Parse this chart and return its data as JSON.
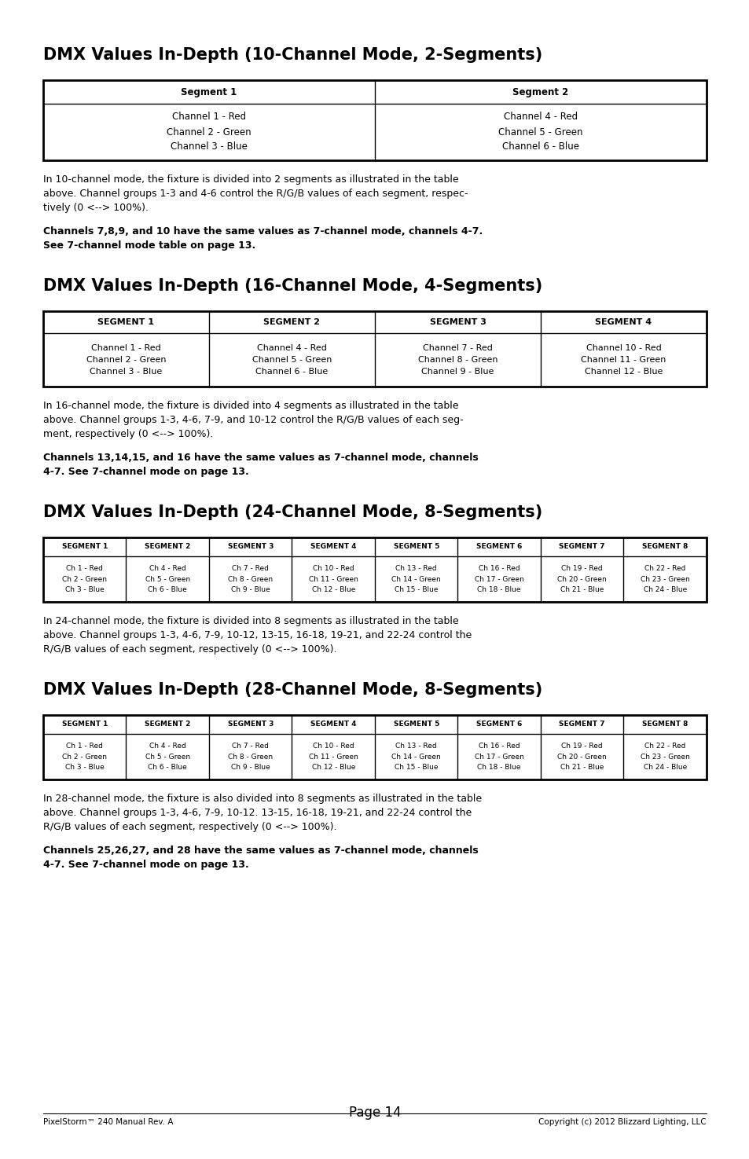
{
  "title1": "DMX Values In-Depth (10-Channel Mode, 2-Segments)",
  "title2": "DMX Values In-Depth (16-Channel Mode, 4-Segments)",
  "title3": "DMX Values In-Depth (24-Channel Mode, 8-Segments)",
  "title4": "DMX Values In-Depth (28-Channel Mode, 8-Segments)",
  "table1_headers": [
    "Segment 1",
    "Segment 2"
  ],
  "table1_rows": [
    [
      "Channel 1 - Red\nChannel 2 - Green\nChannel 3 - Blue",
      "Channel 4 - Red\nChannel 5 - Green\nChannel 6 - Blue"
    ]
  ],
  "table2_headers": [
    "SEGMENT 1",
    "SEGMENT 2",
    "SEGMENT 3",
    "SEGMENT 4"
  ],
  "table2_rows": [
    [
      "Channel 1 - Red\nChannel 2 - Green\nChannel 3 - Blue",
      "Channel 4 - Red\nChannel 5 - Green\nChannel 6 - Blue",
      "Channel 7 - Red\nChannel 8 - Green\nChannel 9 - Blue",
      "Channel 10 - Red\nChannel 11 - Green\nChannel 12 - Blue"
    ]
  ],
  "table3_headers": [
    "SEGMENT 1",
    "SEGMENT 2",
    "SEGMENT 3",
    "SEGMENT 4",
    "SEGMENT 5",
    "SEGMENT 6",
    "SEGMENT 7",
    "SEGMENT 8"
  ],
  "table3_rows": [
    [
      "Ch 1 - Red\nCh 2 - Green\nCh 3 - Blue",
      "Ch 4 - Red\nCh 5 - Green\nCh 6 - Blue",
      "Ch 7 - Red\nCh 8 - Green\nCh 9 - Blue",
      "Ch 10 - Red\nCh 11 - Green\nCh 12 - Blue",
      "Ch 13 - Red\nCh 14 - Green\nCh 15 - Blue",
      "Ch 16 - Red\nCh 17 - Green\nCh 18 - Blue",
      "Ch 19 - Red\nCh 20 - Green\nCh 21 - Blue",
      "Ch 22 - Red\nCh 23 - Green\nCh 24 - Blue"
    ]
  ],
  "table4_headers": [
    "SEGMENT 1",
    "SEGMENT 2",
    "SEGMENT 3",
    "SEGMENT 4",
    "SEGMENT 5",
    "SEGMENT 6",
    "SEGMENT 7",
    "SEGMENT 8"
  ],
  "table4_rows": [
    [
      "Ch 1 - Red\nCh 2 - Green\nCh 3 - Blue",
      "Ch 4 - Red\nCh 5 - Green\nCh 6 - Blue",
      "Ch 7 - Red\nCh 8 - Green\nCh 9 - Blue",
      "Ch 10 - Red\nCh 11 - Green\nCh 12 - Blue",
      "Ch 13 - Red\nCh 14 - Green\nCh 15 - Blue",
      "Ch 16 - Red\nCh 17 - Green\nCh 18 - Blue",
      "Ch 19 - Red\nCh 20 - Green\nCh 21 - Blue",
      "Ch 22 - Red\nCh 23 - Green\nCh 24 - Blue"
    ]
  ],
  "para1_line1": "In 10-channel mode, the fixture is divided into 2 segments as illustrated in the table",
  "para1_line2": "above. Channel groups 1-3 and 4-6 control the R/G/B values of each segment, respec-",
  "para1_line3": "tively (0 <--> 100%).",
  "para1b_line1": "Channels 7,8,9, and 10 have the same values as 7-channel mode, channels 4-7.",
  "para1b_line2": "See 7-channel mode table on page 13.",
  "para2_line1": "In 16-channel mode, the fixture is divided into 4 segments as illustrated in the table",
  "para2_line2": "above. Channel groups 1-3, 4-6, 7-9, and 10-12 control the R/G/B values of each seg-",
  "para2_line3": "ment, respectively (0 <--> 100%).",
  "para2b_line1": "Channels 13,14,15, and 16 have the same values as 7-channel mode, channels",
  "para2b_line2": "4-7. See 7-channel mode on page 13.",
  "para3_line1": "In 24-channel mode, the fixture is divided into 8 segments as illustrated in the table",
  "para3_line2": "above. Channel groups 1-3, 4-6, 7-9, 10-12, 13-15, 16-18, 19-21, and 22-24 control the",
  "para3_line3": "R/G/B values of each segment, respectively (0 <--> 100%).",
  "para4_line1": "In 28-channel mode, the fixture is also divided into 8 segments as illustrated in the table",
  "para4_line2": "above. Channel groups 1-3, 4-6, 7-9, 10-12. 13-15, 16-18, 19-21, and 22-24 control the",
  "para4_line3": "R/G/B values of each segment, respectively (0 <--> 100%).",
  "para4b_line1": "Channels 25,26,27, and 28 have the same values as 7-channel mode, channels",
  "para4b_line2": "4-7. See 7-channel mode on page 13.",
  "footer_left": "PixelStorm™ 240 Manual Rev. A",
  "footer_center": "Page 14",
  "footer_right": "Copyright (c) 2012 Blizzard Lighting, LLC",
  "bg_color": "#ffffff",
  "text_color": "#000000",
  "border_color": "#000000"
}
